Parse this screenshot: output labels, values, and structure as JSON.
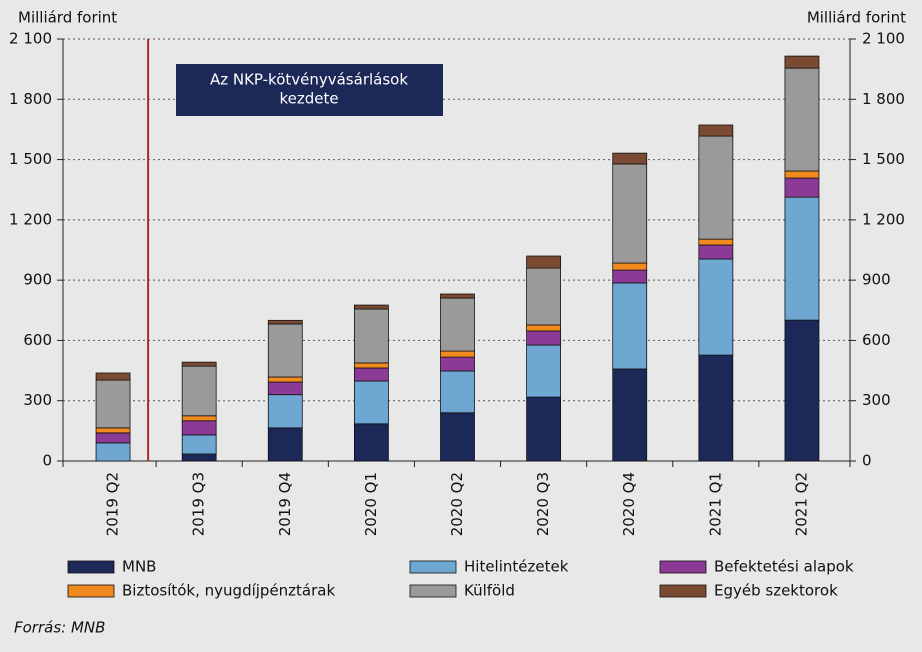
{
  "chart_data": {
    "type": "stacked_bar",
    "y_label": "Milliárd forint",
    "y2_label": "Milliárd forint",
    "annotation": [
      "Az NKP-kötvényvásárlások",
      "kezdete"
    ],
    "source": "Forrás: MNB",
    "categories": [
      "2019 Q2",
      "2019 Q3",
      "2019 Q4",
      "2020 Q1",
      "2020 Q2",
      "2020 Q3",
      "2020 Q4",
      "2021 Q1",
      "2021 Q2"
    ],
    "series": [
      {
        "name": "MNB",
        "color": "#1b2858",
        "values": [
          0,
          35,
          165,
          185,
          240,
          318,
          458,
          527,
          701
        ]
      },
      {
        "name": "Hitelintézetek",
        "color": "#6ea8d2",
        "values": [
          90,
          95,
          165,
          213,
          208,
          259,
          428,
          478,
          612
        ]
      },
      {
        "name": "Befektetési alapok",
        "color": "#8b3a96",
        "values": [
          50,
          70,
          63,
          65,
          69,
          70,
          64,
          70,
          95
        ]
      },
      {
        "name": "Biztosítók, nyugdíjpénztárak",
        "color": "#f0891e",
        "values": [
          25,
          25,
          25,
          25,
          30,
          30,
          35,
          29,
          35
        ]
      },
      {
        "name": "Külföld",
        "color": "#9a9a9a",
        "values": [
          238,
          247,
          264,
          268,
          264,
          283,
          493,
          513,
          512
        ]
      },
      {
        "name": "Egyéb szektorok",
        "color": "#7a4a32",
        "values": [
          35,
          20,
          18,
          20,
          20,
          60,
          54,
          55,
          60
        ]
      }
    ],
    "ylim": [
      0,
      2100
    ],
    "yticks": [
      0,
      300,
      600,
      900,
      {
        "value": 1200,
        "label": "1 200"
      },
      {
        "value": 1500,
        "label": "1 500"
      },
      {
        "value": 1800,
        "label": "1 800"
      },
      {
        "value": 2100,
        "label": "2 100"
      }
    ],
    "y2lim": [
      0,
      2100
    ],
    "y2ticks": [
      0,
      300,
      600,
      900,
      {
        "value": 1200,
        "label": "1 200"
      },
      {
        "value": 1500,
        "label": "1 500"
      },
      {
        "value": 1800,
        "label": "1 800"
      },
      {
        "value": 2100,
        "label": "2 100"
      }
    ],
    "grid": true
  }
}
